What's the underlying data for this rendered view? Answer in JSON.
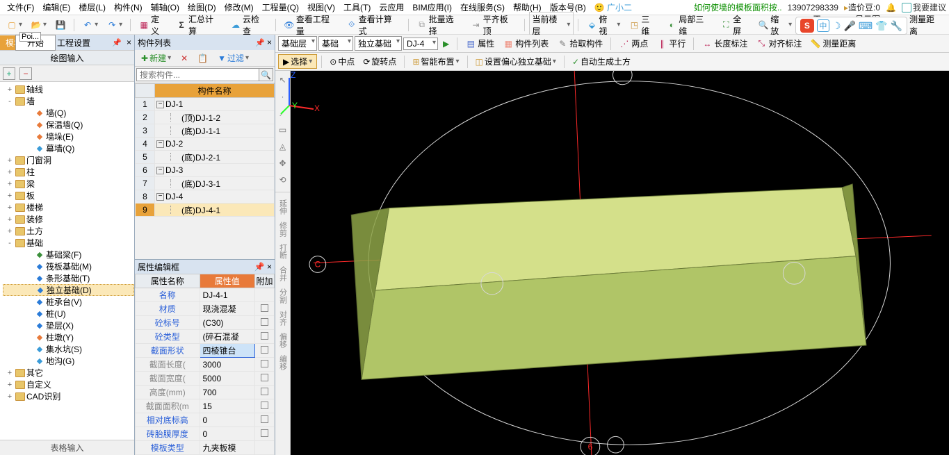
{
  "menu": {
    "items": [
      "文件(F)",
      "编辑(E)",
      "楼层(L)",
      "构件(N)",
      "辅轴(O)",
      "绘图(D)",
      "修改(M)",
      "工程量(Q)",
      "视图(V)",
      "工具(T)",
      "云应用",
      "BIM应用(I)",
      "在线服务(S)",
      "帮助(H)",
      "版本号(B)"
    ],
    "user_icon_label": "广小二",
    "tip": "如何使墙的模板面积按..",
    "phone": "13907298339",
    "credit_label": "造价豆:0",
    "suggest": "我要建议"
  },
  "toolbar1": {
    "define": "定义",
    "sigma": "汇总计算",
    "cloud": "云检查",
    "view_qty": "查看工程量",
    "view_fml": "查看计算式",
    "batch": "批量选择",
    "align_tpl": "平齐板顶",
    "cur_floor": "当前楼层",
    "top_view": "俯视",
    "three_d": "三维",
    "local_3d": "局部三维",
    "fullscreen": "全屏",
    "zoom": "缩放",
    "pan": "平移",
    "layer": "显示图层",
    "dist": "测量距离"
  },
  "left": {
    "tab_module": "模块",
    "tab_start": "开始",
    "tab_project": "工程设置",
    "poi": "Poi...",
    "panel_title": "绘图输入",
    "tree": [
      {
        "t": "轴线",
        "lv": 0,
        "exp": "+",
        "ico": "folder"
      },
      {
        "t": "墙",
        "lv": 0,
        "exp": "-",
        "ico": "folder"
      },
      {
        "t": "墙(Q)",
        "lv": 1,
        "ico": "wall",
        "col": "#e87a3a"
      },
      {
        "t": "保温墙(Q)",
        "lv": 1,
        "ico": "ins",
        "col": "#e87a3a"
      },
      {
        "t": "墙垛(E)",
        "lv": 1,
        "ico": "pier",
        "col": "#e87a3a"
      },
      {
        "t": "幕墙(Q)",
        "lv": 1,
        "ico": "curt",
        "col": "#3a9bd8"
      },
      {
        "t": "门窗洞",
        "lv": 0,
        "exp": "+",
        "ico": "folder"
      },
      {
        "t": "柱",
        "lv": 0,
        "exp": "+",
        "ico": "folder"
      },
      {
        "t": "梁",
        "lv": 0,
        "exp": "+",
        "ico": "folder"
      },
      {
        "t": "板",
        "lv": 0,
        "exp": "+",
        "ico": "folder"
      },
      {
        "t": "楼梯",
        "lv": 0,
        "exp": "+",
        "ico": "folder"
      },
      {
        "t": "装修",
        "lv": 0,
        "exp": "+",
        "ico": "folder"
      },
      {
        "t": "土方",
        "lv": 0,
        "exp": "+",
        "ico": "folder"
      },
      {
        "t": "基础",
        "lv": 0,
        "exp": "-",
        "ico": "folder"
      },
      {
        "t": "基础梁(F)",
        "lv": 1,
        "ico": "fb",
        "col": "#3a8f3a"
      },
      {
        "t": "筏板基础(M)",
        "lv": 1,
        "ico": "raft",
        "col": "#2a7bd8"
      },
      {
        "t": "条形基础(T)",
        "lv": 1,
        "ico": "strip",
        "col": "#2a7bd8"
      },
      {
        "t": "独立基础(D)",
        "lv": 1,
        "ico": "iso",
        "col": "#2a7bd8",
        "sel": true
      },
      {
        "t": "桩承台(V)",
        "lv": 1,
        "ico": "cap",
        "col": "#2a7bd8"
      },
      {
        "t": "桩(U)",
        "lv": 1,
        "ico": "pile",
        "col": "#2a7bd8"
      },
      {
        "t": "垫层(X)",
        "lv": 1,
        "ico": "bed",
        "col": "#2a7bd8"
      },
      {
        "t": "柱墩(Y)",
        "lv": 1,
        "ico": "colb",
        "col": "#e87a3a"
      },
      {
        "t": "集水坑(S)",
        "lv": 1,
        "ico": "sump",
        "col": "#3a9bd8"
      },
      {
        "t": "地沟(G)",
        "lv": 1,
        "ico": "trench",
        "col": "#3a9bd8"
      },
      {
        "t": "其它",
        "lv": 0,
        "exp": "+",
        "ico": "folder"
      },
      {
        "t": "自定义",
        "lv": 0,
        "exp": "+",
        "ico": "folder"
      },
      {
        "t": "CAD识别",
        "lv": 0,
        "exp": "+",
        "ico": "folder"
      }
    ],
    "bottom": "表格输入"
  },
  "mid": {
    "title": "构件列表",
    "new_btn": "新建",
    "filter_btn": "过滤",
    "search_ph": "搜索构件...",
    "col_header": "构件名称",
    "rows": [
      {
        "n": "1",
        "name": "DJ-1",
        "box": "-",
        "ind": 0
      },
      {
        "n": "2",
        "name": "(顶)DJ-1-2",
        "box": "",
        "ind": 1
      },
      {
        "n": "3",
        "name": "(底)DJ-1-1",
        "box": "",
        "ind": 1
      },
      {
        "n": "4",
        "name": "DJ-2",
        "box": "-",
        "ind": 0
      },
      {
        "n": "5",
        "name": "(底)DJ-2-1",
        "box": "",
        "ind": 1
      },
      {
        "n": "6",
        "name": "DJ-3",
        "box": "-",
        "ind": 0
      },
      {
        "n": "7",
        "name": "(底)DJ-3-1",
        "box": "",
        "ind": 1
      },
      {
        "n": "8",
        "name": "DJ-4",
        "box": "-",
        "ind": 0
      },
      {
        "n": "9",
        "name": "(底)DJ-4-1",
        "box": "",
        "ind": 1,
        "sel": true
      }
    ],
    "prop_title": "属性编辑框",
    "prop_cols": [
      "属性名称",
      "属性值",
      "附加"
    ],
    "props": [
      {
        "n": "名称",
        "v": "DJ-4-1",
        "link": true
      },
      {
        "n": "材质",
        "v": "现浇混凝",
        "link": true,
        "chk": true
      },
      {
        "n": "砼标号",
        "v": "(C30)",
        "link": true,
        "chk": true
      },
      {
        "n": "砼类型",
        "v": "(碎石混凝",
        "link": true,
        "chk": true
      },
      {
        "n": "截面形状",
        "v": "四棱锥台",
        "link": true,
        "chk": true,
        "sel": true
      },
      {
        "n": "截面长度(",
        "v": "3000",
        "gray": true,
        "chk": true
      },
      {
        "n": "截面宽度(",
        "v": "5000",
        "gray": true,
        "chk": true
      },
      {
        "n": "高度(mm)",
        "v": "700",
        "gray": true,
        "chk": true
      },
      {
        "n": "截面面积(m",
        "v": "15",
        "gray": true,
        "chk": true
      },
      {
        "n": "相对底标高",
        "v": "0",
        "link": true,
        "chk": true
      },
      {
        "n": "砖胎膜厚度",
        "v": "0",
        "link": true,
        "chk": true
      },
      {
        "n": "模板类型",
        "v": "九夹板模",
        "link": true
      }
    ]
  },
  "right": {
    "tb2": {
      "combos": [
        "基础层",
        "基础",
        "独立基础",
        "DJ-4"
      ],
      "prop": "属性",
      "complist": "构件列表",
      "pick": "拾取构件",
      "two_pt": "两点",
      "parallel": "平行",
      "len_mark": "长度标注",
      "ang_mark": "对齐标注",
      "dist": "测量距离"
    },
    "tb3": {
      "select": "选择",
      "midpt": "中点",
      "rotpt": "旋转点",
      "smart": "智能布置",
      "offset": "设置偏心独立基础",
      "auto_soil": "自动生成土方"
    },
    "vtb": [
      "延伸",
      "修剪",
      "打断",
      "合并",
      "分割",
      "对齐",
      "偏移",
      "编移"
    ],
    "axis": {
      "x": "X",
      "y": "Y",
      "z": "Z"
    },
    "marks": {
      "c": "C",
      "six": "6"
    },
    "colors": {
      "bg": "#000000",
      "circle": "#d8d8d8",
      "grid_red": "#ff2a2a",
      "solid_top": "#d4e08a",
      "solid_front": "#b0c567",
      "solid_side": "#8fa548",
      "solid_edge": "#6a7a38"
    }
  }
}
